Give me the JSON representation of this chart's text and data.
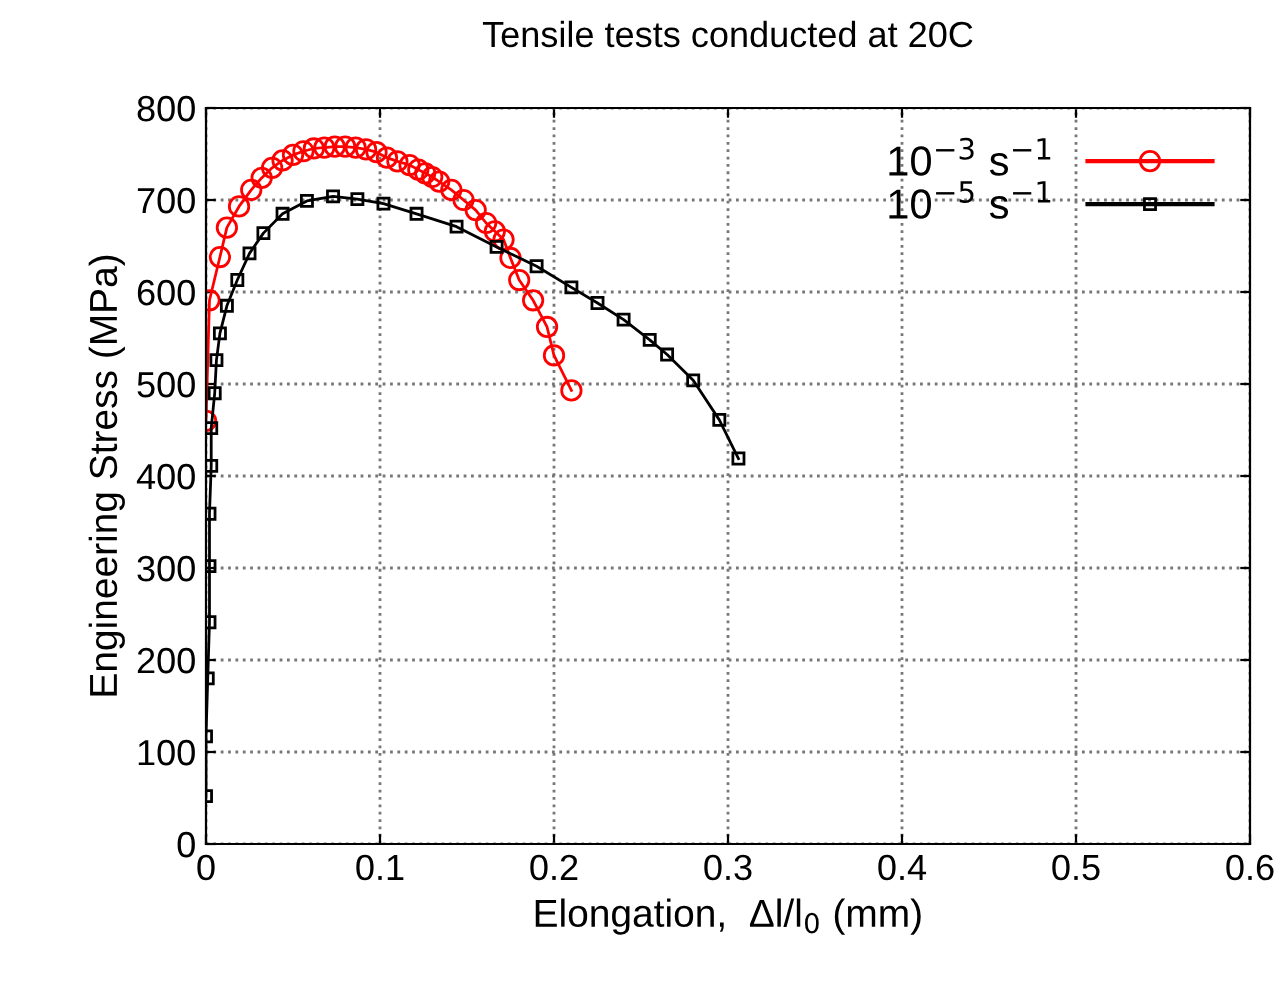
{
  "chart_data": {
    "type": "line",
    "title": "Tensile tests conducted at 20C",
    "xlabel": "Elongation,  Δl/l$_{0}$ (mm)",
    "ylabel": "Engineering Stress (MPa)",
    "xlim": [
      0,
      0.6
    ],
    "xticks": [
      0,
      0.1,
      0.2,
      0.3,
      0.4,
      0.5,
      0.6
    ],
    "ylim": [
      0,
      800
    ],
    "yticks": [
      0,
      100,
      200,
      300,
      400,
      500,
      600,
      700,
      800
    ],
    "grid": true,
    "legend": "top right",
    "line_style": "solid",
    "series": [
      {
        "name": "10$^{−3}$ s$^{−1}$",
        "color": "#ff0000",
        "marker": "circle",
        "x": [
          0,
          0.002,
          0.008,
          0.012,
          0.019,
          0.026,
          0.032,
          0.038,
          0.044,
          0.05,
          0.056,
          0.062,
          0.068,
          0.074,
          0.08,
          0.086,
          0.092,
          0.098,
          0.104,
          0.11,
          0.117,
          0.122,
          0.126,
          0.13,
          0.134,
          0.141,
          0.148,
          0.155,
          0.161,
          0.166,
          0.171,
          0.175,
          0.18,
          0.188,
          0.196,
          0.2,
          0.21
        ],
        "values": [
          460,
          591,
          638,
          670,
          693,
          711,
          724,
          735,
          743,
          749,
          753,
          756,
          757,
          758,
          758,
          757,
          755,
          752,
          746,
          742,
          738,
          733,
          729,
          725,
          720,
          711,
          700,
          689,
          675,
          666,
          657,
          637,
          613,
          591,
          562,
          531,
          493
        ]
      },
      {
        "name": "10$^{−5}$ s$^{−1}$",
        "color": "#000000",
        "marker": "square",
        "x": [
          0,
          0,
          0.001,
          0.002,
          0.002,
          0.002,
          0.003,
          0.003,
          0.005,
          0.006,
          0.008,
          0.012,
          0.018,
          0.025,
          0.033,
          0.044,
          0.058,
          0.073,
          0.087,
          0.102,
          0.121,
          0.144,
          0.167,
          0.19,
          0.21,
          0.225,
          0.24,
          0.255,
          0.265,
          0.28,
          0.295,
          0.306
        ],
        "values": [
          52,
          117,
          180,
          241,
          302,
          359,
          411,
          452,
          490,
          526,
          555,
          585,
          613,
          642,
          664,
          685,
          699,
          704,
          701,
          696,
          685,
          671,
          649,
          628,
          605,
          588,
          570,
          548,
          532,
          504,
          461,
          419
        ]
      }
    ]
  }
}
